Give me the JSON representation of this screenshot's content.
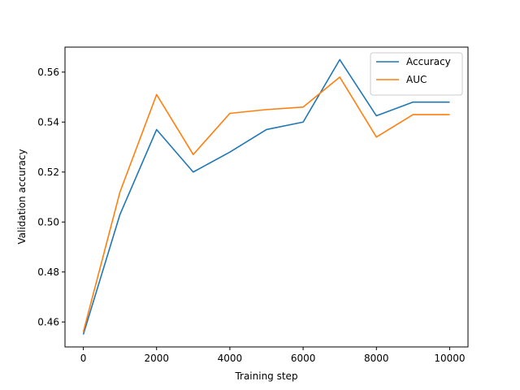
{
  "chart_data": {
    "type": "line",
    "xlabel": "Training step",
    "ylabel": "Validation accuracy",
    "xlim": [
      -500,
      10500
    ],
    "ylim": [
      0.45,
      0.57
    ],
    "xticks": [
      0,
      2000,
      4000,
      6000,
      8000,
      10000
    ],
    "yticks": [
      0.46,
      0.48,
      0.5,
      0.52,
      0.54,
      0.56
    ],
    "x": [
      0,
      1000,
      2000,
      3000,
      4000,
      5000,
      6000,
      7000,
      8000,
      9000,
      10000
    ],
    "series": [
      {
        "name": "Accuracy",
        "color": "#1f77b4",
        "values": [
          0.455,
          0.503,
          0.537,
          0.52,
          0.528,
          0.537,
          0.54,
          0.565,
          0.5425,
          0.548,
          0.548
        ]
      },
      {
        "name": "AUC",
        "color": "#ff7f0e",
        "values": [
          0.456,
          0.512,
          0.551,
          0.527,
          0.5435,
          0.545,
          0.546,
          0.558,
          0.534,
          0.543,
          0.543
        ]
      }
    ],
    "grid": false,
    "legend_position": "top-right"
  }
}
